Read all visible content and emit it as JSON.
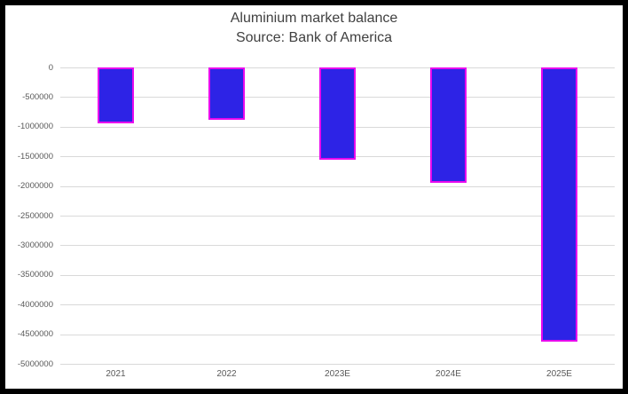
{
  "chart_data": {
    "type": "bar",
    "title": "Aluminium market balance",
    "subtitle": "Source: Bank of America",
    "categories": [
      "2021",
      "2022",
      "2023E",
      "2024E",
      "2025E"
    ],
    "values": [
      -940000,
      -890000,
      -1550000,
      -1940000,
      -4630000
    ],
    "xlabel": "",
    "ylabel": "",
    "ylim": [
      -5000000,
      0
    ],
    "ytick_labels": [
      "0",
      "-500000",
      "-1000000",
      "-1500000",
      "-2000000",
      "-2500000",
      "-3000000",
      "-3500000",
      "-4000000",
      "-4500000",
      "-5000000"
    ],
    "ytick_values": [
      0,
      -500000,
      -1000000,
      -1500000,
      -2000000,
      -2500000,
      -3000000,
      -3500000,
      -4000000,
      -4500000,
      -5000000
    ],
    "grid": true,
    "legend": false,
    "colors": {
      "bar_fill": "#2D23E6",
      "bar_border": "#E808EE",
      "gridline": "#D9D9D9",
      "title_text": "#404040",
      "tick_text": "#595959",
      "frame": "#000000",
      "background": "#FFFFFF"
    }
  }
}
